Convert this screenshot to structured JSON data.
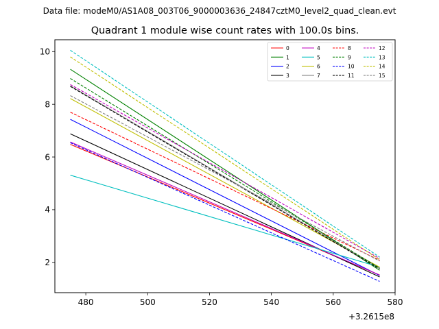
{
  "suptitle": "Data file: modeM0/AS1A08_003T06_9000003636_24847cztM0_level2_quad_clean.evt",
  "chart_data": {
    "type": "line",
    "title": "Quadrant 1 module wise count rates with 100.0s bins.",
    "xlabel": "",
    "ylabel": "",
    "x_offset_label": "+3.2615e8",
    "xlim": [
      470,
      580
    ],
    "ylim": [
      0.85,
      10.45
    ],
    "xticks": [
      480,
      500,
      520,
      540,
      560,
      580
    ],
    "yticks": [
      2,
      4,
      6,
      8,
      10
    ],
    "grid": false,
    "legend_position": "top-right",
    "x": [
      475,
      575
    ],
    "series": [
      {
        "name": "0",
        "color": "#ff0000",
        "style": "solid",
        "values": [
          6.48,
          1.52
        ]
      },
      {
        "name": "1",
        "color": "#008000",
        "style": "solid",
        "values": [
          9.33,
          1.7
        ]
      },
      {
        "name": "2",
        "color": "#0000ff",
        "style": "solid",
        "values": [
          7.43,
          1.5
        ]
      },
      {
        "name": "3",
        "color": "#000000",
        "style": "solid",
        "values": [
          6.88,
          1.45
        ]
      },
      {
        "name": "4",
        "color": "#bf00bf",
        "style": "solid",
        "values": [
          6.57,
          1.52
        ]
      },
      {
        "name": "5",
        "color": "#00bfbf",
        "style": "solid",
        "values": [
          5.31,
          1.82
        ]
      },
      {
        "name": "6",
        "color": "#bfbf00",
        "style": "solid",
        "values": [
          8.22,
          1.82
        ]
      },
      {
        "name": "7",
        "color": "#808080",
        "style": "solid",
        "values": [
          8.7,
          1.78
        ]
      },
      {
        "name": "8",
        "color": "#ff0000",
        "style": "dashed",
        "values": [
          7.7,
          2.08
        ]
      },
      {
        "name": "9",
        "color": "#008000",
        "style": "dashed",
        "values": [
          8.98,
          1.78
        ]
      },
      {
        "name": "10",
        "color": "#0000ff",
        "style": "dashed",
        "values": [
          6.54,
          1.28
        ]
      },
      {
        "name": "11",
        "color": "#000000",
        "style": "dashed",
        "values": [
          8.68,
          1.75
        ]
      },
      {
        "name": "12",
        "color": "#bf00bf",
        "style": "dashed",
        "values": [
          8.75,
          2.15
        ]
      },
      {
        "name": "13",
        "color": "#00bfbf",
        "style": "dashed",
        "values": [
          10.05,
          2.2
        ]
      },
      {
        "name": "14",
        "color": "#bfbf00",
        "style": "dashed",
        "values": [
          9.8,
          2.1
        ]
      },
      {
        "name": "15",
        "color": "#808080",
        "style": "dashed",
        "values": [
          8.33,
          2.05
        ]
      }
    ]
  }
}
